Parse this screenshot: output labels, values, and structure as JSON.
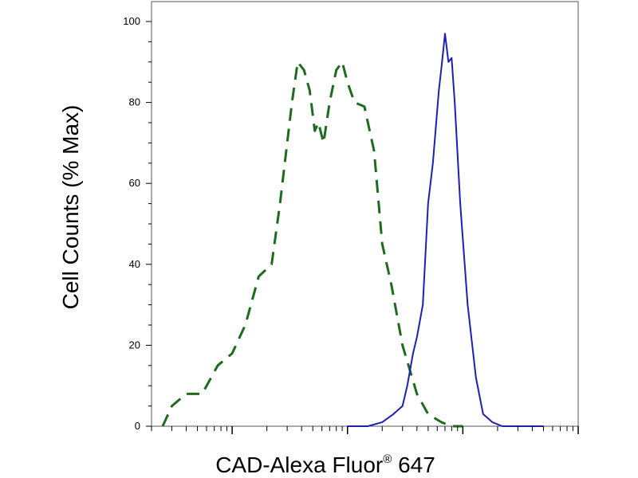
{
  "chart_data": {
    "type": "line",
    "title": "",
    "xlabel": "CAD-Alexa Fluor",
    "xlabel_sup": "®",
    "xlabel_suffix": " 647",
    "ylabel": "Cell Counts (% Max)",
    "x_scale": "log",
    "xlim": [
      20,
      100000
    ],
    "ylim": [
      0,
      100
    ],
    "y_ticks": [
      0,
      20,
      40,
      60,
      80,
      100
    ],
    "y_tick_labels": [
      "0",
      "20",
      "40",
      "60",
      "80",
      "100"
    ],
    "grid": false,
    "legend": "none",
    "series": [
      {
        "color": "#1e6b1e",
        "line_style": "dashed",
        "x": [
          25,
          30,
          40,
          55,
          75,
          100,
          130,
          170,
          220,
          260,
          300,
          330,
          370,
          420,
          470,
          520,
          560,
          620,
          700,
          800,
          900,
          1000,
          1150,
          1400,
          1700,
          2000,
          2400,
          3000,
          4000,
          5000,
          6500,
          8000,
          10000
        ],
        "y": [
          0,
          5,
          8,
          8,
          15,
          18,
          25,
          37,
          40,
          55,
          70,
          80,
          90,
          88,
          83,
          73,
          75,
          70,
          80,
          88,
          90,
          85,
          80,
          79,
          68,
          45,
          35,
          20,
          8,
          3,
          1,
          0,
          0
        ]
      },
      {
        "color": "#1f1fb4",
        "line_style": "solid",
        "x": [
          1000,
          1500,
          2000,
          2500,
          3000,
          3300,
          3700,
          4000,
          4500,
          5000,
          5500,
          6200,
          6600,
          7000,
          7500,
          8000,
          8500,
          9500,
          11000,
          13000,
          15000,
          18000,
          22000,
          30000,
          50000
        ],
        "y": [
          0,
          0,
          1,
          3,
          5,
          10,
          18,
          22,
          30,
          55,
          65,
          83,
          90,
          97,
          90,
          91,
          80,
          55,
          30,
          12,
          3,
          1,
          0,
          0,
          0
        ]
      }
    ]
  }
}
